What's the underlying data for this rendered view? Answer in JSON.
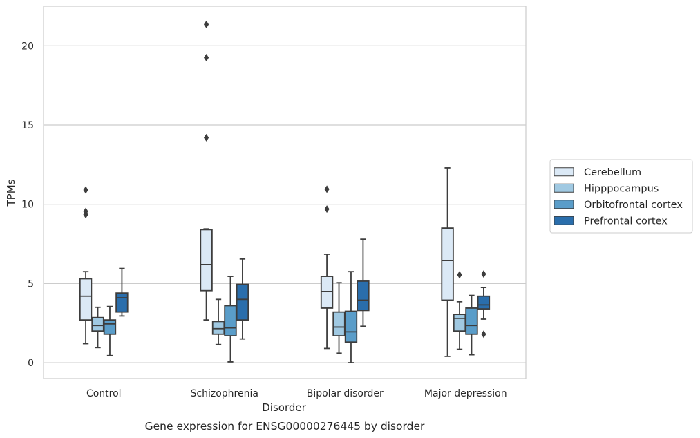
{
  "chart_data": {
    "type": "box",
    "xlabel": "Disorder",
    "ylabel": "TPMs",
    "caption": "Gene expression for ENSG00000276445 by disorder",
    "ylim": [
      -1,
      22.5
    ],
    "yticks": [
      0,
      5,
      10,
      15,
      20
    ],
    "grid": "horizontal",
    "legend_position": "right",
    "categories": [
      "Control",
      "Schizophrenia",
      "Bipolar disorder",
      "Major depression"
    ],
    "series": [
      {
        "name": "Cerebellum",
        "color": "#dbe9f6",
        "boxes": [
          {
            "whislo": 1.2,
            "q1": 2.7,
            "med": 4.2,
            "q3": 5.3,
            "whishi": 5.75,
            "fliers": [
              9.35,
              9.55,
              10.9
            ]
          },
          {
            "whislo": 2.7,
            "q1": 4.55,
            "med": 6.2,
            "q3": 8.4,
            "whishi": 8.45,
            "fliers": [
              14.2,
              19.25,
              21.35
            ]
          },
          {
            "whislo": 0.9,
            "q1": 3.45,
            "med": 4.5,
            "q3": 5.45,
            "whishi": 6.85,
            "fliers": [
              9.7,
              10.95
            ]
          },
          {
            "whislo": 0.4,
            "q1": 3.95,
            "med": 6.45,
            "q3": 8.5,
            "whishi": 12.3,
            "fliers": []
          }
        ]
      },
      {
        "name": "Hipppocampus",
        "color": "#a0c9e2",
        "boxes": [
          {
            "whislo": 0.95,
            "q1": 2.0,
            "med": 2.35,
            "q3": 2.85,
            "whishi": 3.5,
            "fliers": []
          },
          {
            "whislo": 1.15,
            "q1": 1.8,
            "med": 2.15,
            "q3": 2.6,
            "whishi": 4.0,
            "fliers": []
          },
          {
            "whislo": 0.6,
            "q1": 1.7,
            "med": 2.25,
            "q3": 3.2,
            "whishi": 5.05,
            "fliers": []
          },
          {
            "whislo": 0.85,
            "q1": 2.0,
            "med": 2.8,
            "q3": 3.05,
            "whishi": 3.85,
            "fliers": [
              5.55
            ]
          }
        ]
      },
      {
        "name": "Orbitofrontal cortex",
        "color": "#5a9dc9",
        "boxes": [
          {
            "whislo": 0.45,
            "q1": 1.8,
            "med": 2.45,
            "q3": 2.7,
            "whishi": 3.55,
            "fliers": []
          },
          {
            "whislo": 0.05,
            "q1": 1.7,
            "med": 2.2,
            "q3": 3.6,
            "whishi": 5.45,
            "fliers": []
          },
          {
            "whislo": 0.0,
            "q1": 1.3,
            "med": 1.95,
            "q3": 3.25,
            "whishi": 5.75,
            "fliers": []
          },
          {
            "whislo": 0.5,
            "q1": 1.8,
            "med": 2.35,
            "q3": 3.45,
            "whishi": 4.25,
            "fliers": []
          }
        ]
      },
      {
        "name": "Prefrontal cortex",
        "color": "#2a6eac",
        "boxes": [
          {
            "whislo": 2.95,
            "q1": 3.2,
            "med": 4.1,
            "q3": 4.4,
            "whishi": 5.95,
            "fliers": []
          },
          {
            "whislo": 1.5,
            "q1": 2.7,
            "med": 4.0,
            "q3": 4.95,
            "whishi": 6.55,
            "fliers": []
          },
          {
            "whislo": 2.3,
            "q1": 3.3,
            "med": 3.95,
            "q3": 5.15,
            "whishi": 7.8,
            "fliers": []
          },
          {
            "whislo": 2.75,
            "q1": 3.4,
            "med": 3.65,
            "q3": 4.2,
            "whishi": 4.75,
            "fliers": [
              1.8,
              5.6
            ]
          }
        ]
      }
    ]
  }
}
